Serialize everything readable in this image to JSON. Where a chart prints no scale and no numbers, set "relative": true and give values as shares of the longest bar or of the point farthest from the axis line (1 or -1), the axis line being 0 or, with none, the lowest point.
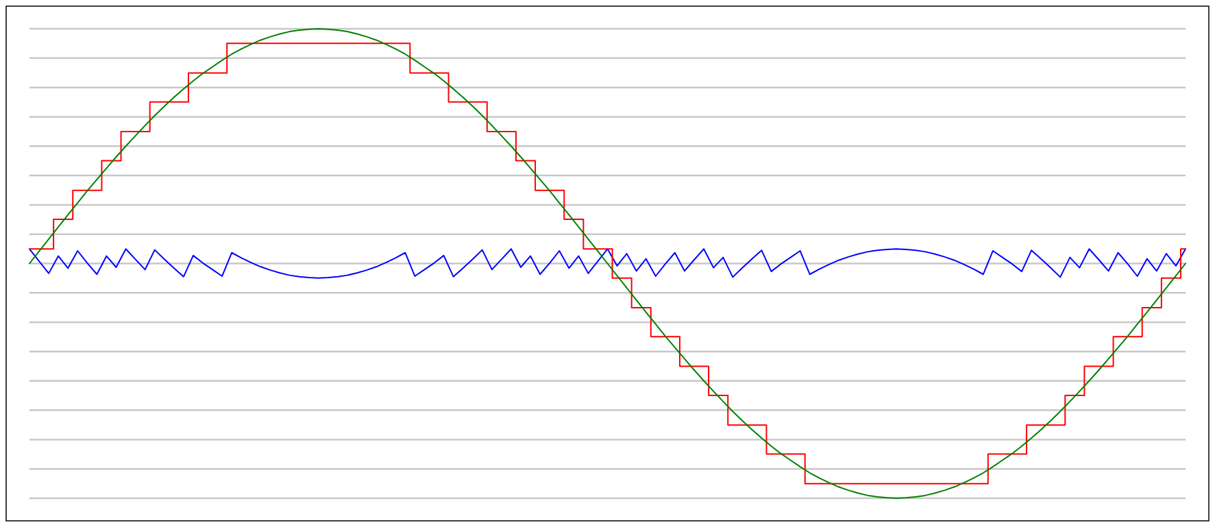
{
  "chart_data": {
    "type": "line",
    "relative": true,
    "grid": "y",
    "categories": [
      null,
      null,
      null,
      null,
      null,
      null,
      null,
      null,
      null,
      null,
      null,
      null,
      null,
      null,
      null,
      null,
      null,
      null,
      null,
      null,
      null,
      null,
      null,
      null,
      null,
      null,
      null,
      null,
      null,
      null,
      null,
      null,
      null,
      null,
      null,
      null,
      null,
      null,
      null,
      null,
      null,
      null,
      null,
      null,
      null,
      null,
      null,
      null,
      null,
      null,
      null,
      null,
      null,
      null,
      null,
      null,
      null,
      null,
      null,
      null,
      null,
      null,
      null,
      null,
      null,
      null,
      null,
      null,
      null,
      null,
      null,
      null,
      null,
      null,
      null,
      null,
      null,
      null,
      null,
      null,
      null,
      null,
      null,
      null,
      null,
      null,
      null,
      null,
      null,
      null,
      null,
      null,
      null,
      null,
      null,
      null,
      null,
      null,
      null,
      null,
      null,
      null,
      null,
      null,
      null,
      null,
      null,
      null,
      null,
      null,
      null,
      null,
      null,
      null,
      null,
      null,
      null,
      null,
      null,
      null,
      null
    ],
    "series": [
      {
        "color": "#0000ff",
        "values": [
          0.531,
          0.505,
          0.479,
          0.516,
          0.49,
          0.527,
          0.501,
          0.477,
          0.516,
          0.492,
          0.531,
          0.509,
          0.487,
          0.529,
          0.509,
          0.49,
          0.472,
          0.517,
          0.501,
          0.487,
          0.473,
          0.523,
          0.512,
          0.502,
          0.493,
          0.486,
          0.48,
          0.475,
          0.472,
          0.47,
          0.469,
          0.47,
          0.472,
          0.475,
          0.48,
          0.486,
          0.493,
          0.502,
          0.512,
          0.523,
          0.473,
          0.487,
          0.501,
          0.517,
          0.472,
          0.49,
          0.509,
          0.529,
          0.487,
          0.509,
          0.531,
          0.492,
          0.516,
          0.477,
          0.501,
          0.527,
          0.49,
          0.516,
          0.479,
          0.505,
          0.531,
          0.495,
          0.521,
          0.484,
          0.51,
          0.473,
          0.499,
          0.523,
          0.484,
          0.508,
          0.531,
          0.491,
          0.513,
          0.471,
          0.491,
          0.51,
          0.528,
          0.483,
          0.499,
          0.513,
          0.527,
          0.477,
          0.488,
          0.498,
          0.507,
          0.514,
          0.52,
          0.525,
          0.528,
          0.53,
          0.531,
          0.53,
          0.528,
          0.525,
          0.52,
          0.514,
          0.507,
          0.498,
          0.488,
          0.477,
          0.527,
          0.513,
          0.499,
          0.483,
          0.528,
          0.51,
          0.491,
          0.471,
          0.513,
          0.491,
          0.531,
          0.508,
          0.484,
          0.523,
          0.499,
          0.473,
          0.51,
          0.484,
          0.521,
          0.495,
          0.531
        ]
      },
      {
        "type": "step",
        "color": "#ff0000",
        "values": [
          0.531,
          0.531,
          0.531,
          0.594,
          0.594,
          0.656,
          0.656,
          0.656,
          0.719,
          0.719,
          0.781,
          0.781,
          0.781,
          0.844,
          0.844,
          0.844,
          0.844,
          0.906,
          0.906,
          0.906,
          0.906,
          0.969,
          0.969,
          0.969,
          0.969,
          0.969,
          0.969,
          0.969,
          0.969,
          0.969,
          0.969,
          0.969,
          0.969,
          0.969,
          0.969,
          0.969,
          0.969,
          0.969,
          0.969,
          0.969,
          0.906,
          0.906,
          0.906,
          0.906,
          0.844,
          0.844,
          0.844,
          0.844,
          0.781,
          0.781,
          0.781,
          0.719,
          0.719,
          0.656,
          0.656,
          0.656,
          0.594,
          0.594,
          0.531,
          0.531,
          0.531,
          0.469,
          0.469,
          0.406,
          0.406,
          0.344,
          0.344,
          0.344,
          0.281,
          0.281,
          0.281,
          0.219,
          0.219,
          0.156,
          0.156,
          0.156,
          0.156,
          0.094,
          0.094,
          0.094,
          0.094,
          0.031,
          0.031,
          0.031,
          0.031,
          0.031,
          0.031,
          0.031,
          0.031,
          0.031,
          0.031,
          0.031,
          0.031,
          0.031,
          0.031,
          0.031,
          0.031,
          0.031,
          0.031,
          0.031,
          0.094,
          0.094,
          0.094,
          0.094,
          0.156,
          0.156,
          0.156,
          0.156,
          0.219,
          0.219,
          0.281,
          0.281,
          0.281,
          0.344,
          0.344,
          0.344,
          0.406,
          0.406,
          0.469,
          0.469,
          0.531
        ]
      },
      {
        "color": "#008000",
        "values": [
          0.5,
          0.526,
          0.552,
          0.578,
          0.604,
          0.629,
          0.655,
          0.679,
          0.703,
          0.727,
          0.75,
          0.772,
          0.794,
          0.815,
          0.835,
          0.854,
          0.872,
          0.889,
          0.905,
          0.919,
          0.933,
          0.946,
          0.957,
          0.967,
          0.976,
          0.983,
          0.989,
          0.994,
          0.997,
          0.999,
          1,
          0.999,
          0.997,
          0.994,
          0.989,
          0.983,
          0.976,
          0.967,
          0.957,
          0.946,
          0.933,
          0.919,
          0.905,
          0.889,
          0.872,
          0.854,
          0.835,
          0.815,
          0.794,
          0.772,
          0.75,
          0.727,
          0.703,
          0.679,
          0.655,
          0.629,
          0.604,
          0.578,
          0.552,
          0.526,
          0.5,
          0.474,
          0.448,
          0.422,
          0.396,
          0.371,
          0.345,
          0.321,
          0.297,
          0.273,
          0.25,
          0.228,
          0.206,
          0.185,
          0.165,
          0.146,
          0.128,
          0.111,
          0.095,
          0.081,
          0.067,
          0.054,
          0.043,
          0.033,
          0.024,
          0.017,
          0.011,
          0.006,
          0.003,
          0.001,
          0,
          0.001,
          0.003,
          0.006,
          0.011,
          0.017,
          0.024,
          0.033,
          0.043,
          0.054,
          0.067,
          0.081,
          0.095,
          0.111,
          0.128,
          0.146,
          0.165,
          0.185,
          0.206,
          0.228,
          0.25,
          0.273,
          0.297,
          0.321,
          0.345,
          0.371,
          0.396,
          0.422,
          0.448,
          0.474,
          0.5
        ]
      }
    ]
  }
}
